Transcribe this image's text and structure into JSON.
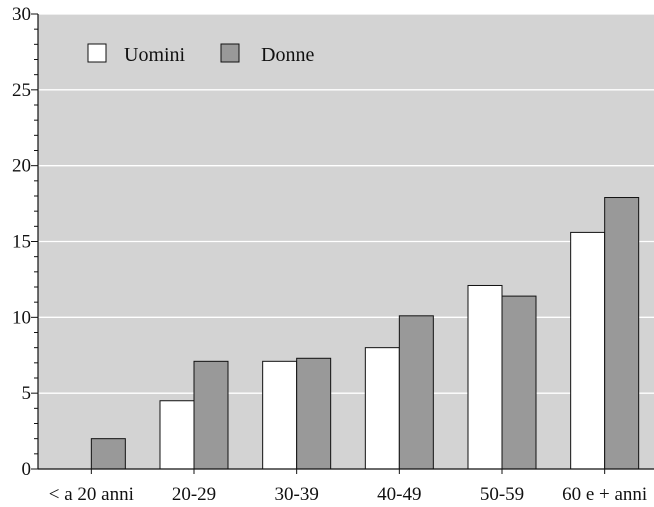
{
  "chart_data": {
    "type": "bar",
    "title": "",
    "xlabel": "",
    "ylabel": "",
    "categories": [
      "< a 20 anni",
      "20-29",
      "30-39",
      "40-49",
      "50-59",
      "60 e + anni"
    ],
    "series": [
      {
        "name": "Uomini",
        "color": "#ffffff",
        "values": [
          0,
          4.5,
          7.1,
          8.0,
          12.1,
          15.6
        ]
      },
      {
        "name": "Donne",
        "color": "#999999",
        "values": [
          2.0,
          7.1,
          7.3,
          10.1,
          11.4,
          17.9
        ]
      }
    ],
    "ylim": [
      0,
      30
    ],
    "yticks": [
      "0",
      "5",
      "10",
      "15",
      "20",
      "25",
      "30"
    ],
    "grid": true,
    "legend_position": "top-left",
    "background_color": "#d3d3d3"
  }
}
